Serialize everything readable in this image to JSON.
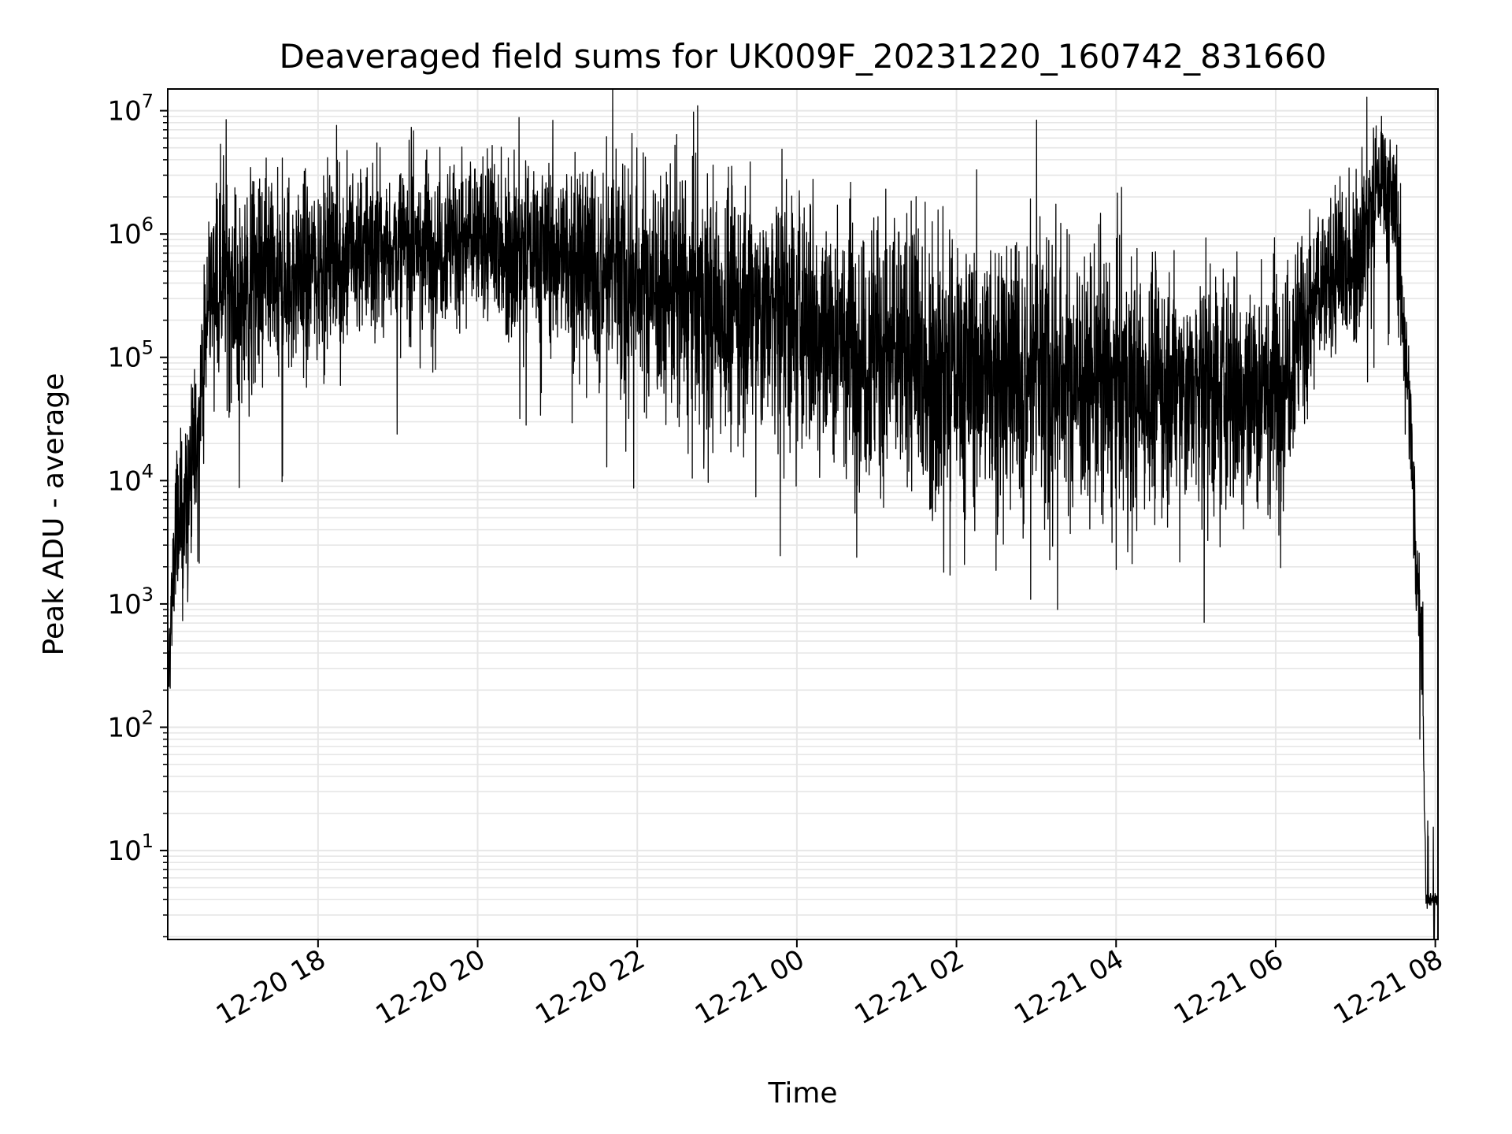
{
  "chart_data": {
    "type": "line",
    "title": "Deaveraged field sums for UK009F_20231220_160742_831660",
    "xlabel": "Time",
    "ylabel": "Peak ADU - average",
    "yscale": "log",
    "xlim": [
      "2023-12-20 16:07",
      "2023-12-21 08:02"
    ],
    "ylim": [
      1.9,
      15000000
    ],
    "grid": true,
    "legend": "none",
    "line_color": "#000000",
    "grid_color": "#e6e6e6",
    "x_ticks": [
      {
        "value": "2023-12-20 18:00",
        "label": "12-20 18"
      },
      {
        "value": "2023-12-20 20:00",
        "label": "12-20 20"
      },
      {
        "value": "2023-12-20 22:00",
        "label": "12-20 22"
      },
      {
        "value": "2023-12-21 00:00",
        "label": "12-21 00"
      },
      {
        "value": "2023-12-21 02:00",
        "label": "12-21 02"
      },
      {
        "value": "2023-12-21 04:00",
        "label": "12-21 04"
      },
      {
        "value": "2023-12-21 06:00",
        "label": "12-21 06"
      },
      {
        "value": "2023-12-21 08:00",
        "label": "12-21 08"
      }
    ],
    "y_ticks": [
      {
        "value": 10,
        "base": "10",
        "exp": "1"
      },
      {
        "value": 100,
        "base": "10",
        "exp": "2"
      },
      {
        "value": 1000,
        "base": "10",
        "exp": "3"
      },
      {
        "value": 10000,
        "base": "10",
        "exp": "4"
      },
      {
        "value": 100000,
        "base": "10",
        "exp": "5"
      },
      {
        "value": 1000000,
        "base": "10",
        "exp": "6"
      },
      {
        "value": 10000000,
        "base": "10",
        "exp": "7"
      }
    ],
    "series": [
      {
        "trend": [
          {
            "x": "2023-12-20 16:07",
            "y": 200,
            "spread": 0.15
          },
          {
            "x": "2023-12-20 16:12",
            "y": 3000,
            "spread": 0.45
          },
          {
            "x": "2023-12-20 16:20",
            "y": 6000,
            "spread": 0.35
          },
          {
            "x": "2023-12-20 16:30",
            "y": 30000,
            "spread": 0.3
          },
          {
            "x": "2023-12-20 16:40",
            "y": 400000,
            "spread": 0.35
          },
          {
            "x": "2023-12-20 16:50",
            "y": 600000,
            "spread": 0.45
          },
          {
            "x": "2023-12-20 17:00",
            "y": 300000,
            "spread": 0.45
          },
          {
            "x": "2023-12-20 17:30",
            "y": 350000,
            "spread": 0.45
          },
          {
            "x": "2023-12-20 18:00",
            "y": 600000,
            "spread": 0.4
          },
          {
            "x": "2023-12-20 19:00",
            "y": 800000,
            "spread": 0.35
          },
          {
            "x": "2023-12-20 20:00",
            "y": 900000,
            "spread": 0.35
          },
          {
            "x": "2023-12-20 21:00",
            "y": 700000,
            "spread": 0.4
          },
          {
            "x": "2023-12-20 22:00",
            "y": 450000,
            "spread": 0.5
          },
          {
            "x": "2023-12-20 23:00",
            "y": 250000,
            "spread": 0.55
          },
          {
            "x": "2023-12-21 00:00",
            "y": 200000,
            "spread": 0.55
          },
          {
            "x": "2023-12-21 01:00",
            "y": 120000,
            "spread": 0.6
          },
          {
            "x": "2023-12-21 02:00",
            "y": 80000,
            "spread": 0.6
          },
          {
            "x": "2023-12-21 03:00",
            "y": 80000,
            "spread": 0.6
          },
          {
            "x": "2023-12-21 04:00",
            "y": 60000,
            "spread": 0.55
          },
          {
            "x": "2023-12-21 05:00",
            "y": 50000,
            "spread": 0.5
          },
          {
            "x": "2023-12-21 06:00",
            "y": 60000,
            "spread": 0.55
          },
          {
            "x": "2023-12-21 06:30",
            "y": 300000,
            "spread": 0.35
          },
          {
            "x": "2023-12-21 07:00",
            "y": 700000,
            "spread": 0.35
          },
          {
            "x": "2023-12-21 07:20",
            "y": 3000000,
            "spread": 0.3
          },
          {
            "x": "2023-12-21 07:30",
            "y": 1500000,
            "spread": 0.3
          },
          {
            "x": "2023-12-21 07:40",
            "y": 50000,
            "spread": 0.3
          },
          {
            "x": "2023-12-21 07:45",
            "y": 3000,
            "spread": 0.3
          },
          {
            "x": "2023-12-21 07:50",
            "y": 500,
            "spread": 0.2
          },
          {
            "x": "2023-12-21 07:53",
            "y": 4,
            "spread": 0.03
          },
          {
            "x": "2023-12-21 08:02",
            "y": 4,
            "spread": 0.03
          }
        ]
      }
    ]
  }
}
